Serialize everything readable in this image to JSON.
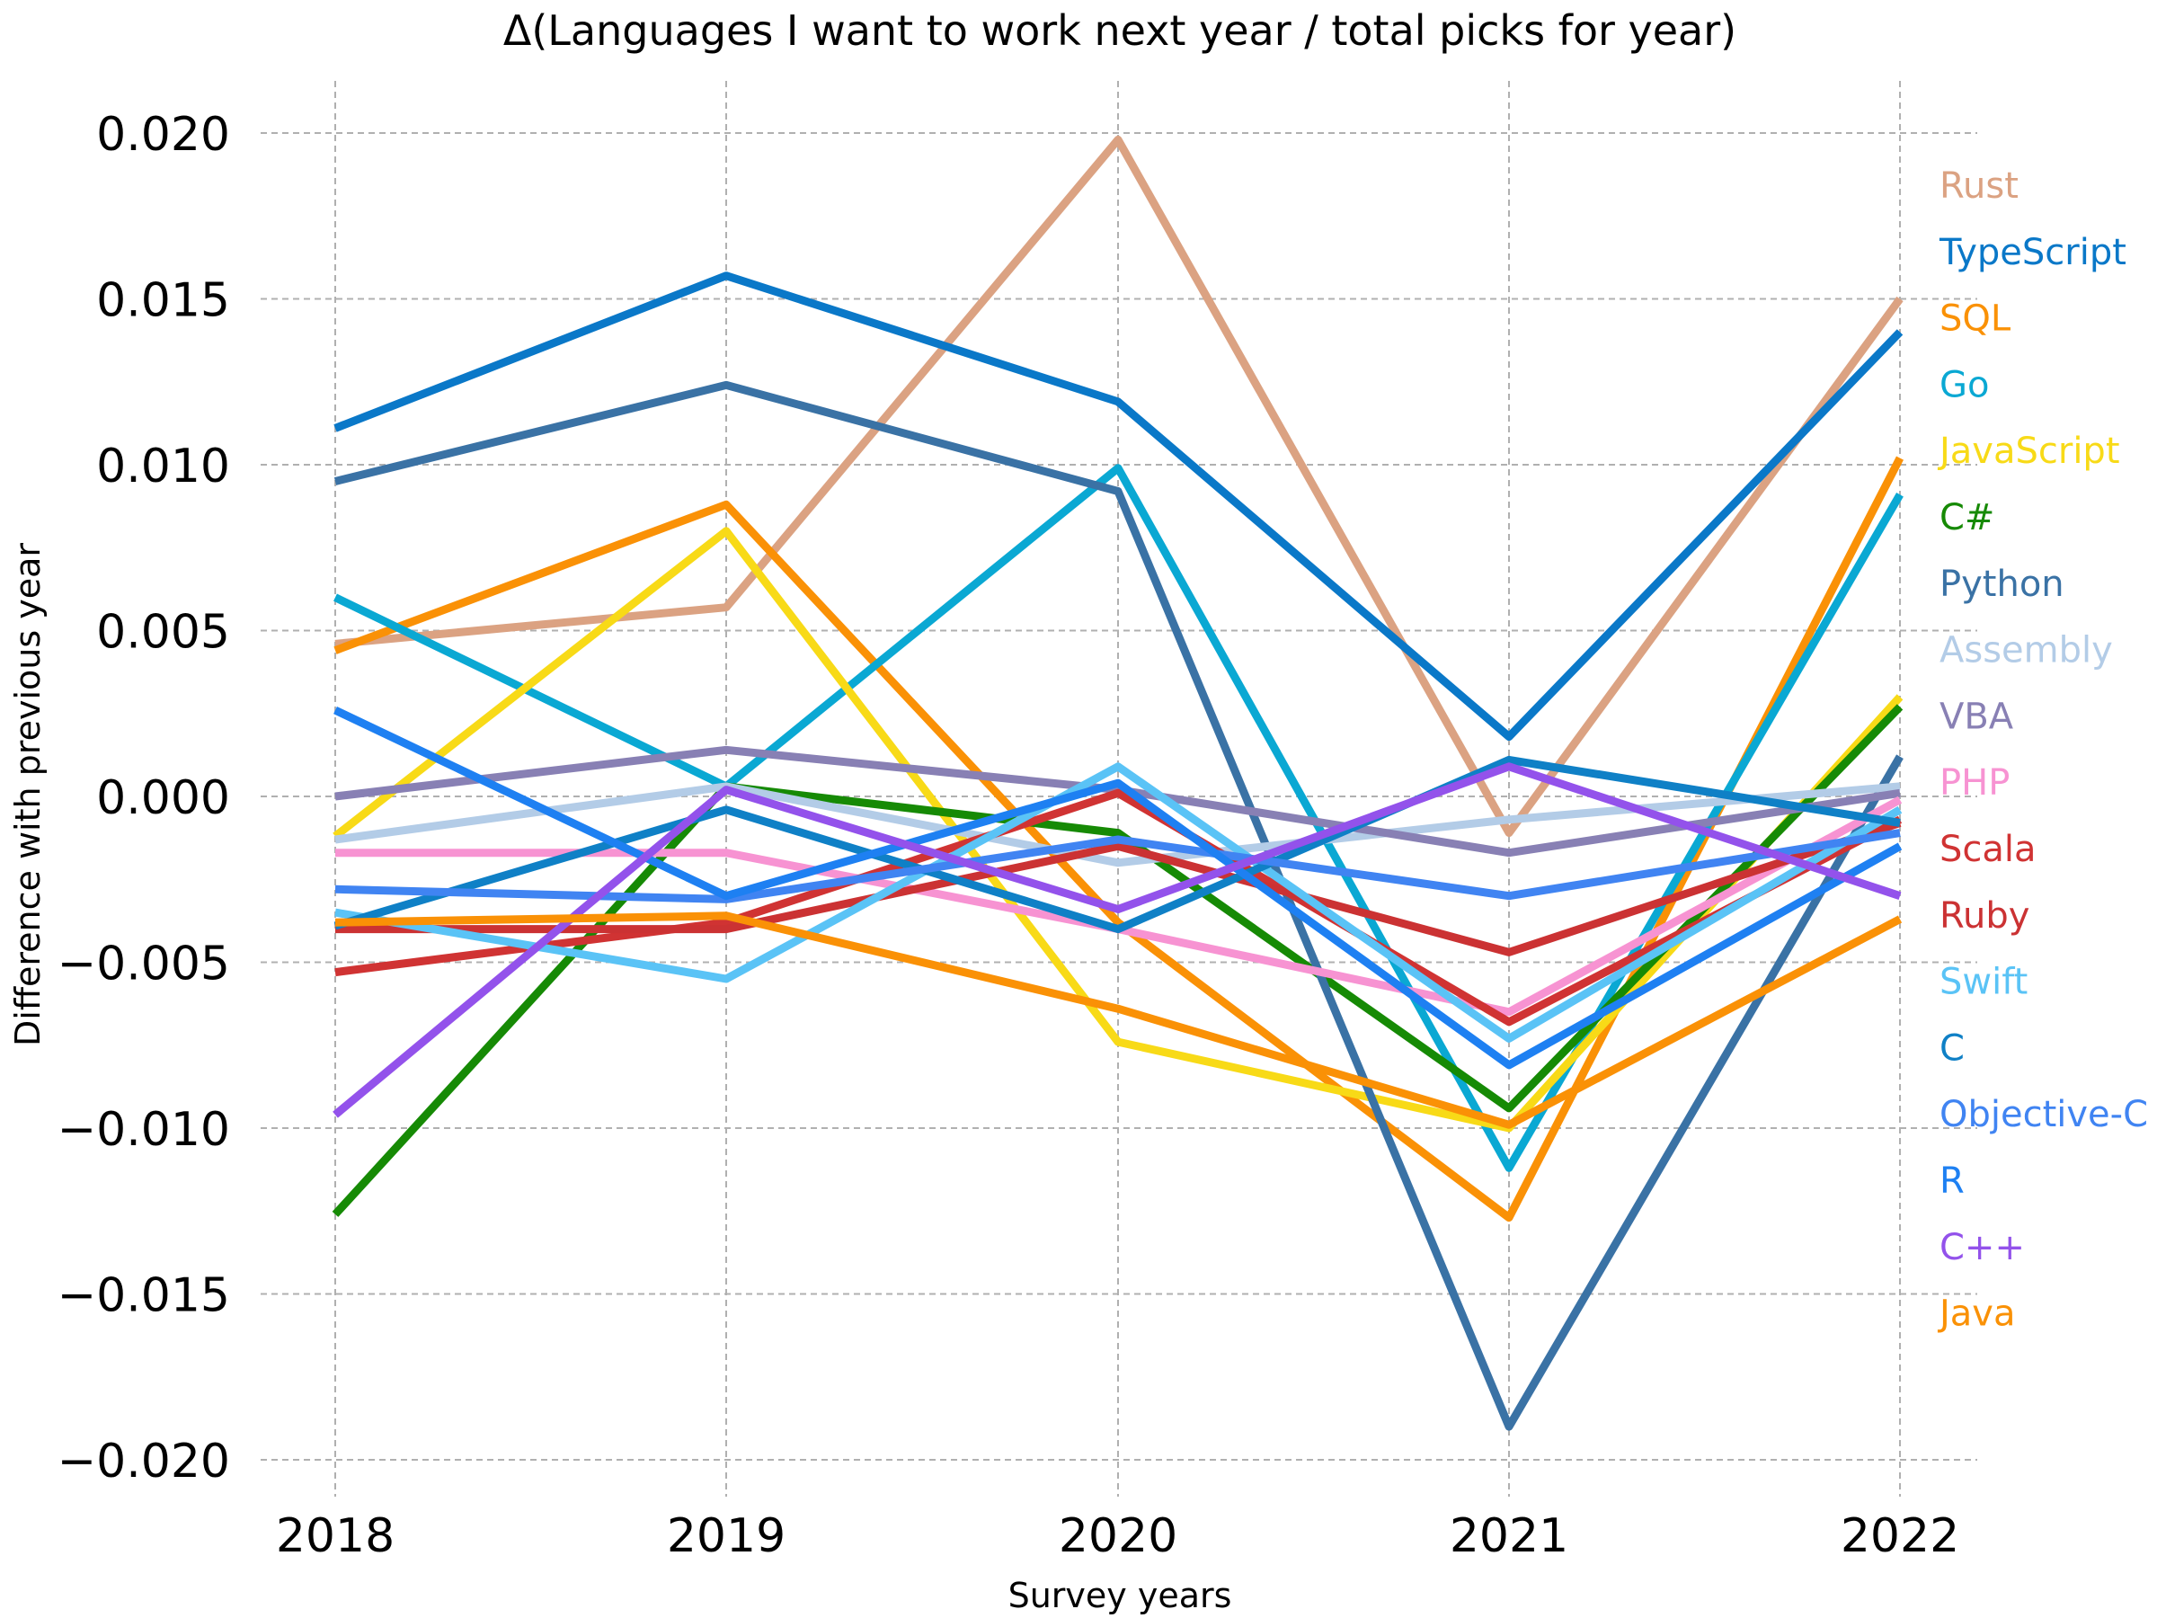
{
  "chart_data": {
    "type": "line",
    "title": "Δ(Languages I want to work next year / total picks for year)",
    "xlabel": "Survey years",
    "ylabel": "Difference with previous year",
    "x": [
      "2018",
      "2019",
      "2020",
      "2021",
      "2022"
    ],
    "yticks": [
      "0.020",
      "0.015",
      "0.010",
      "0.005",
      "0.000",
      "−0.005",
      "−0.010",
      "−0.015",
      "−0.020"
    ],
    "ytick_values": [
      0.02,
      0.015,
      0.01,
      0.005,
      0.0,
      -0.005,
      -0.01,
      -0.015,
      -0.02
    ],
    "ylim": [
      -0.0212,
      0.0222
    ],
    "grid": true,
    "legend_position": "right",
    "series": [
      {
        "name": "Rust",
        "color": "#dba282",
        "values": [
          0.0046,
          0.0057,
          0.0198,
          -0.0011,
          0.015
        ]
      },
      {
        "name": "TypeScript",
        "color": "#0a78c8",
        "values": [
          0.0111,
          0.0157,
          0.0119,
          0.0018,
          0.014
        ]
      },
      {
        "name": "SQL",
        "color": "#fa9106",
        "values": [
          0.0044,
          0.0088,
          -0.0038,
          -0.0127,
          0.0102
        ]
      },
      {
        "name": "Go",
        "color": "#0aa8d3",
        "values": [
          0.006,
          0.0003,
          0.0099,
          -0.0112,
          0.0091
        ]
      },
      {
        "name": "JavaScript",
        "color": "#f8da17",
        "values": [
          -0.0012,
          0.008,
          -0.0074,
          -0.01,
          0.003
        ]
      },
      {
        "name": "C#",
        "color": "#168a05",
        "values": [
          -0.0126,
          0.0003,
          -0.0011,
          -0.0094,
          0.0027
        ]
      },
      {
        "name": "Python",
        "color": "#3a72a5",
        "values": [
          0.0095,
          0.0124,
          0.0092,
          -0.019,
          0.0012
        ]
      },
      {
        "name": "Assembly",
        "color": "#b3cce7",
        "values": [
          -0.0013,
          0.0003,
          -0.002,
          -0.0007,
          0.0003
        ]
      },
      {
        "name": "VBA",
        "color": "#8880b4",
        "values": [
          0.0,
          0.0014,
          0.0002,
          -0.0017,
          0.0001
        ]
      },
      {
        "name": "PHP",
        "color": "#f793d2",
        "values": [
          -0.0017,
          -0.0017,
          -0.004,
          -0.0065,
          -0.0001
        ]
      },
      {
        "name": "Scala",
        "color": "#d03333",
        "values": [
          -0.0053,
          -0.0038,
          0.0001,
          -0.0068,
          -0.0007
        ]
      },
      {
        "name": "Ruby",
        "color": "#cb3233",
        "values": [
          -0.004,
          -0.004,
          -0.0015,
          -0.0047,
          -0.0008
        ]
      },
      {
        "name": "Swift",
        "color": "#5ac3f6",
        "values": [
          -0.0035,
          -0.0055,
          0.0009,
          -0.0073,
          -0.0004
        ]
      },
      {
        "name": "C",
        "color": "#0f80c6",
        "values": [
          -0.0039,
          -0.0004,
          -0.004,
          0.0011,
          -0.0008
        ]
      },
      {
        "name": "Objective-C",
        "color": "#4084f2",
        "values": [
          -0.0028,
          -0.0031,
          -0.0013,
          -0.003,
          -0.0011
        ]
      },
      {
        "name": "R",
        "color": "#1e80f2",
        "values": [
          0.0026,
          -0.003,
          0.0004,
          -0.0081,
          -0.0015
        ]
      },
      {
        "name": "C++",
        "color": "#9352eb",
        "values": [
          -0.0096,
          0.0002,
          -0.0034,
          0.0009,
          -0.003
        ]
      },
      {
        "name": "Java",
        "color": "#fa9106",
        "values": [
          -0.0038,
          -0.0036,
          -0.0064,
          -0.0099,
          -0.0037
        ]
      }
    ]
  }
}
